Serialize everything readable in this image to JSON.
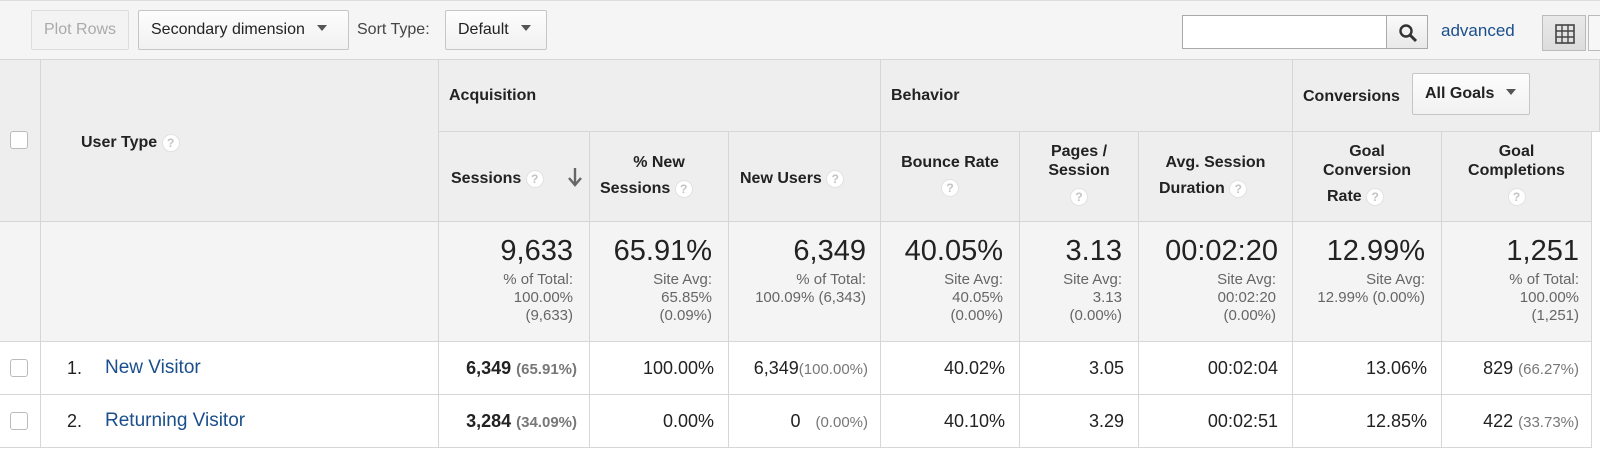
{
  "toolbar": {
    "plot_rows": "Plot Rows",
    "secondary_dimension": "Secondary dimension",
    "sort_type_label": "Sort Type:",
    "sort_type_value": "Default",
    "search_value": "",
    "advanced": "advanced"
  },
  "groups": {
    "acquisition": "Acquisition",
    "behavior": "Behavior",
    "conversions": "Conversions",
    "goals_select": "All Goals"
  },
  "dimension": {
    "label": "User Type"
  },
  "columns": {
    "sessions": [
      "Sessions"
    ],
    "pct_new_sessions": [
      "% New",
      "Sessions"
    ],
    "new_users": [
      "New Users"
    ],
    "bounce_rate": [
      "Bounce Rate"
    ],
    "pages_session": [
      "Pages /",
      "Session"
    ],
    "avg_session_duration": [
      "Avg. Session",
      "Duration"
    ],
    "goal_conversion_rate": [
      "Goal",
      "Conversion",
      "Rate"
    ],
    "goal_completions": [
      "Goal",
      "Completions"
    ]
  },
  "totals": {
    "sessions": {
      "value": "9,633",
      "sub": [
        "% of Total:",
        "100.00%",
        "(9,633)"
      ]
    },
    "pct_new_sessions": {
      "value": "65.91%",
      "sub": [
        "Site Avg:",
        "65.85%",
        "(0.09%)"
      ]
    },
    "new_users": {
      "value": "6,349",
      "sub": [
        "% of Total:",
        "100.09% (6,343)"
      ]
    },
    "bounce_rate": {
      "value": "40.05%",
      "sub": [
        "Site Avg:",
        "40.05%",
        "(0.00%)"
      ]
    },
    "pages_session": {
      "value": "3.13",
      "sub": [
        "Site Avg:",
        "3.13",
        "(0.00%)"
      ]
    },
    "avg_session_duration": {
      "value": "00:02:20",
      "sub": [
        "Site Avg:",
        "00:02:20",
        "(0.00%)"
      ]
    },
    "goal_conversion_rate": {
      "value": "12.99%",
      "sub": [
        "Site Avg:",
        "12.99% (0.00%)"
      ]
    },
    "goal_completions": {
      "value": "1,251",
      "sub": [
        "% of Total:",
        "100.00%",
        "(1,251)"
      ]
    }
  },
  "rows": [
    {
      "num": "1.",
      "user_type": "New Visitor",
      "sessions": "6,349",
      "sessions_pct": "(65.91%)",
      "pct_new_sessions": "100.00%",
      "new_users": "6,349",
      "new_users_pct": "(100.00%)",
      "bounce_rate": "40.02%",
      "pages_session": "3.05",
      "avg_session_duration": "00:02:04",
      "goal_conversion_rate": "13.06%",
      "goal_completions": "829",
      "goal_completions_pct": "(66.27%)"
    },
    {
      "num": "2.",
      "user_type": "Returning Visitor",
      "sessions": "3,284",
      "sessions_pct": "(34.09%)",
      "pct_new_sessions": "0.00%",
      "new_users": "0",
      "new_users_pct": "(0.00%)",
      "bounce_rate": "40.10%",
      "pages_session": "3.29",
      "avg_session_duration": "00:02:51",
      "goal_conversion_rate": "12.85%",
      "goal_completions": "422",
      "goal_completions_pct": "(33.73%)"
    }
  ]
}
